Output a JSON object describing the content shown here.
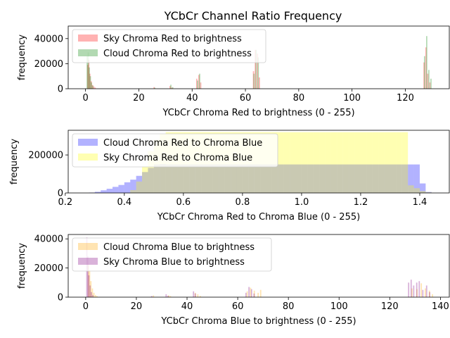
{
  "figure_title": "YCbCr Channel Ratio Frequency",
  "chart_data": [
    {
      "type": "histogram",
      "xlabel": "YCbCr Chroma Red to brightness (0 - 255)",
      "ylabel": "frequency",
      "xlim": [
        -6.5,
        136.5
      ],
      "ylim": [
        0,
        50000
      ],
      "xticks": [
        0,
        20,
        40,
        60,
        80,
        100,
        120
      ],
      "yticks": [
        0,
        20000,
        40000
      ],
      "legend_position": "upper-left",
      "series": [
        {
          "name": "Sky Chroma Red to brightness",
          "color": "#ff0000",
          "alpha": 0.3,
          "bars": [
            [
              0.6,
              19000
            ],
            [
              1.0,
              23000
            ],
            [
              1.4,
              12000
            ],
            [
              1.9,
              6000
            ],
            [
              2.4,
              3000
            ],
            [
              2.9,
              1800
            ],
            [
              3.4,
              900
            ],
            [
              25.5,
              1300
            ],
            [
              31.5,
              2200
            ],
            [
              32.2,
              900
            ],
            [
              41.5,
              8000
            ],
            [
              42.3,
              11000
            ],
            [
              43.0,
              5000
            ],
            [
              62.8,
              14000
            ],
            [
              63.5,
              31000
            ],
            [
              64.3,
              28000
            ],
            [
              65.0,
              9000
            ],
            [
              126.8,
              21000
            ],
            [
              127.5,
              33000
            ],
            [
              128.2,
              12000
            ],
            [
              129.0,
              5000
            ]
          ]
        },
        {
          "name": "Cloud Chroma Red to brightness",
          "color": "#008000",
          "alpha": 0.3,
          "bars": [
            [
              0.4,
              26000
            ],
            [
              0.8,
              29000
            ],
            [
              1.2,
              17000
            ],
            [
              1.6,
              10000
            ],
            [
              2.0,
              5000
            ],
            [
              2.5,
              2500
            ],
            [
              25.8,
              800
            ],
            [
              31.8,
              3200
            ],
            [
              32.5,
              1200
            ],
            [
              41.8,
              6500
            ],
            [
              42.6,
              12000
            ],
            [
              63.0,
              12000
            ],
            [
              63.8,
              31000
            ],
            [
              64.6,
              25000
            ],
            [
              127.0,
              26000
            ],
            [
              127.8,
              42000
            ],
            [
              128.6,
              15000
            ],
            [
              129.4,
              8000
            ]
          ]
        }
      ]
    },
    {
      "type": "histogram",
      "xlabel": "YCbCr Chroma Red to Chroma Blue (0 - 255)",
      "ylabel": "frequency",
      "xlim": [
        0.21,
        1.5
      ],
      "ylim": [
        0,
        330000
      ],
      "xticks": [
        0.2,
        0.4,
        0.6,
        0.8,
        1.0,
        1.2,
        1.4
      ],
      "yticks": [
        0,
        200000
      ],
      "legend_position": "upper-left",
      "series": [
        {
          "name": "Cloud Chroma Red to Chroma Blue",
          "color": "#0000ff",
          "alpha": 0.3,
          "start": 0.28,
          "width": 0.02,
          "counts": [
            2000,
            6000,
            14000,
            22000,
            32000,
            42000,
            56000,
            70000,
            90000,
            110000,
            132000,
            150000,
            152000,
            150000,
            150000,
            150000,
            150000,
            150000,
            150000,
            150000,
            150000,
            150000,
            150000,
            150000,
            150000,
            150000,
            150000,
            150000,
            150000,
            150000,
            150000,
            150000,
            150000,
            150000,
            150000,
            150000,
            150000,
            150000,
            150000,
            150000,
            150000,
            150000,
            150000,
            150000,
            150000,
            150000,
            150000,
            150000,
            150000,
            150000,
            150000,
            150000,
            150000,
            150000,
            150000,
            150000,
            50000,
            5000
          ]
        },
        {
          "name": "Sky Chroma Red to Chroma Blue",
          "color": "#ffff00",
          "alpha": 0.3,
          "start": 0.42,
          "width": 0.02,
          "counts": [
            15000,
            60000,
            140000,
            220000,
            280000,
            310000,
            320000,
            320000,
            320000,
            320000,
            320000,
            320000,
            320000,
            320000,
            320000,
            320000,
            320000,
            320000,
            320000,
            320000,
            320000,
            320000,
            320000,
            320000,
            320000,
            320000,
            320000,
            320000,
            320000,
            320000,
            320000,
            320000,
            320000,
            320000,
            320000,
            320000,
            320000,
            320000,
            320000,
            320000,
            320000,
            320000,
            320000,
            320000,
            320000,
            320000,
            320000,
            40000,
            25000,
            10000,
            3000
          ]
        }
      ]
    },
    {
      "type": "histogram",
      "xlabel": "YCbCr Chroma Blue to brightness (0 - 255)",
      "ylabel": "frequency",
      "xlim": [
        -6.9,
        143.5
      ],
      "ylim": [
        0,
        43000
      ],
      "xticks": [
        0,
        20,
        40,
        60,
        80,
        100,
        120,
        140
      ],
      "yticks": [
        0,
        20000,
        40000
      ],
      "legend_position": "upper-left",
      "series": [
        {
          "name": "Cloud Chroma Blue to brightness",
          "color": "#ffa500",
          "alpha": 0.3,
          "bars": [
            [
              0.8,
              22000
            ],
            [
              1.3,
              18000
            ],
            [
              1.8,
              11000
            ],
            [
              2.4,
              6000
            ],
            [
              3.0,
              3000
            ],
            [
              3.6,
              1500
            ],
            [
              4.2,
              700
            ],
            [
              26.5,
              1200
            ],
            [
              32.5,
              1200
            ],
            [
              33.2,
              800
            ],
            [
              43.0,
              3000
            ],
            [
              44.0,
              2000
            ],
            [
              45.0,
              800
            ],
            [
              63.5,
              4000
            ],
            [
              64.8,
              6500
            ],
            [
              66.3,
              4500
            ],
            [
              67.8,
              3000
            ],
            [
              68.8,
              5000
            ],
            [
              128.5,
              6000
            ],
            [
              130.5,
              5500
            ],
            [
              132.2,
              9500
            ],
            [
              133.8,
              6000
            ],
            [
              135.4,
              4500
            ],
            [
              136.6,
              2000
            ]
          ]
        },
        {
          "name": "Sky Chroma Blue to brightness",
          "color": "#800080",
          "alpha": 0.3,
          "bars": [
            [
              0.2,
              41000
            ],
            [
              0.6,
              28000
            ],
            [
              1.0,
              15000
            ],
            [
              1.5,
              8000
            ],
            [
              2.0,
              3500
            ],
            [
              2.6,
              1500
            ],
            [
              25.8,
              800
            ],
            [
              31.5,
              2000
            ],
            [
              32.2,
              1000
            ],
            [
              42.3,
              4000
            ],
            [
              43.0,
              2500
            ],
            [
              63.0,
              3000
            ],
            [
              64.2,
              7000
            ],
            [
              65.2,
              5500
            ],
            [
              66.2,
              2500
            ],
            [
              127.2,
              10000
            ],
            [
              128.2,
              12000
            ],
            [
              129.2,
              8000
            ],
            [
              130.4,
              10000
            ],
            [
              131.4,
              11000
            ],
            [
              132.8,
              5000
            ],
            [
              134.3,
              8000
            ],
            [
              135.5,
              3500
            ]
          ]
        }
      ]
    }
  ]
}
